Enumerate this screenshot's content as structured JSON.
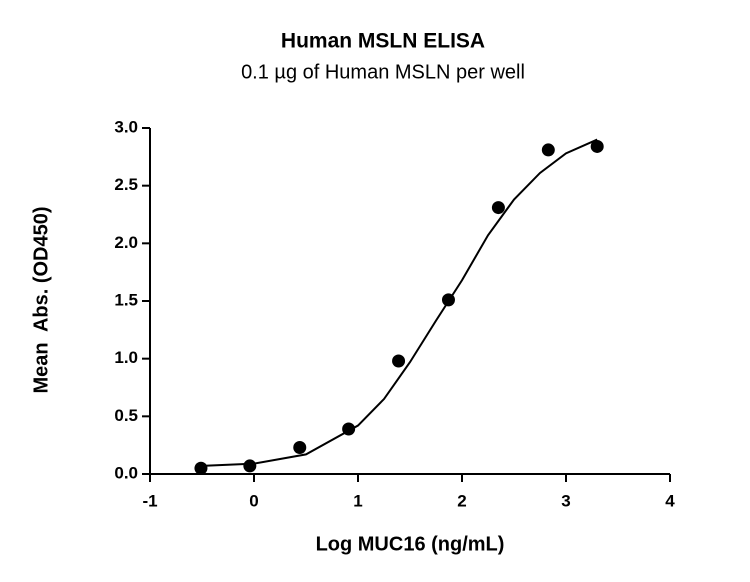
{
  "chart_data": {
    "type": "scatter",
    "title": "Human MSLN ELISA",
    "subtitle": "0.1 µg of Human MSLN per well",
    "x_label": "Log MUC16 (ng/mL)",
    "y_label": "Mean  Abs. (OD450)",
    "x": [
      -0.51,
      -0.04,
      0.44,
      0.91,
      1.39,
      1.87,
      2.35,
      2.83,
      3.3
    ],
    "values": [
      0.05,
      0.07,
      0.23,
      0.39,
      0.98,
      1.51,
      2.31,
      2.81,
      2.84
    ],
    "color": "#000000",
    "curve": {
      "x": [
        -0.5,
        0,
        0.5,
        1.0,
        1.25,
        1.5,
        1.75,
        2.0,
        2.25,
        2.5,
        2.75,
        3.0,
        3.3
      ],
      "values": [
        0.07,
        0.09,
        0.17,
        0.42,
        0.65,
        0.97,
        1.33,
        1.68,
        2.07,
        2.38,
        2.61,
        2.78,
        2.9
      ]
    },
    "xlim": [
      -1,
      4
    ],
    "xticks": [
      -1,
      0,
      1,
      2,
      3,
      4
    ],
    "ylim": [
      0,
      3
    ],
    "yticks": [
      {
        "value": 0,
        "label": "0.0"
      },
      {
        "value": 0.5,
        "label": "0.5"
      },
      {
        "value": 1,
        "label": "1.0"
      },
      {
        "value": 1.5,
        "label": "1.5"
      },
      {
        "value": 2,
        "label": "2.0"
      },
      {
        "value": 2.5,
        "label": "2.5"
      },
      {
        "value": 3,
        "label": "3.0"
      }
    ]
  }
}
